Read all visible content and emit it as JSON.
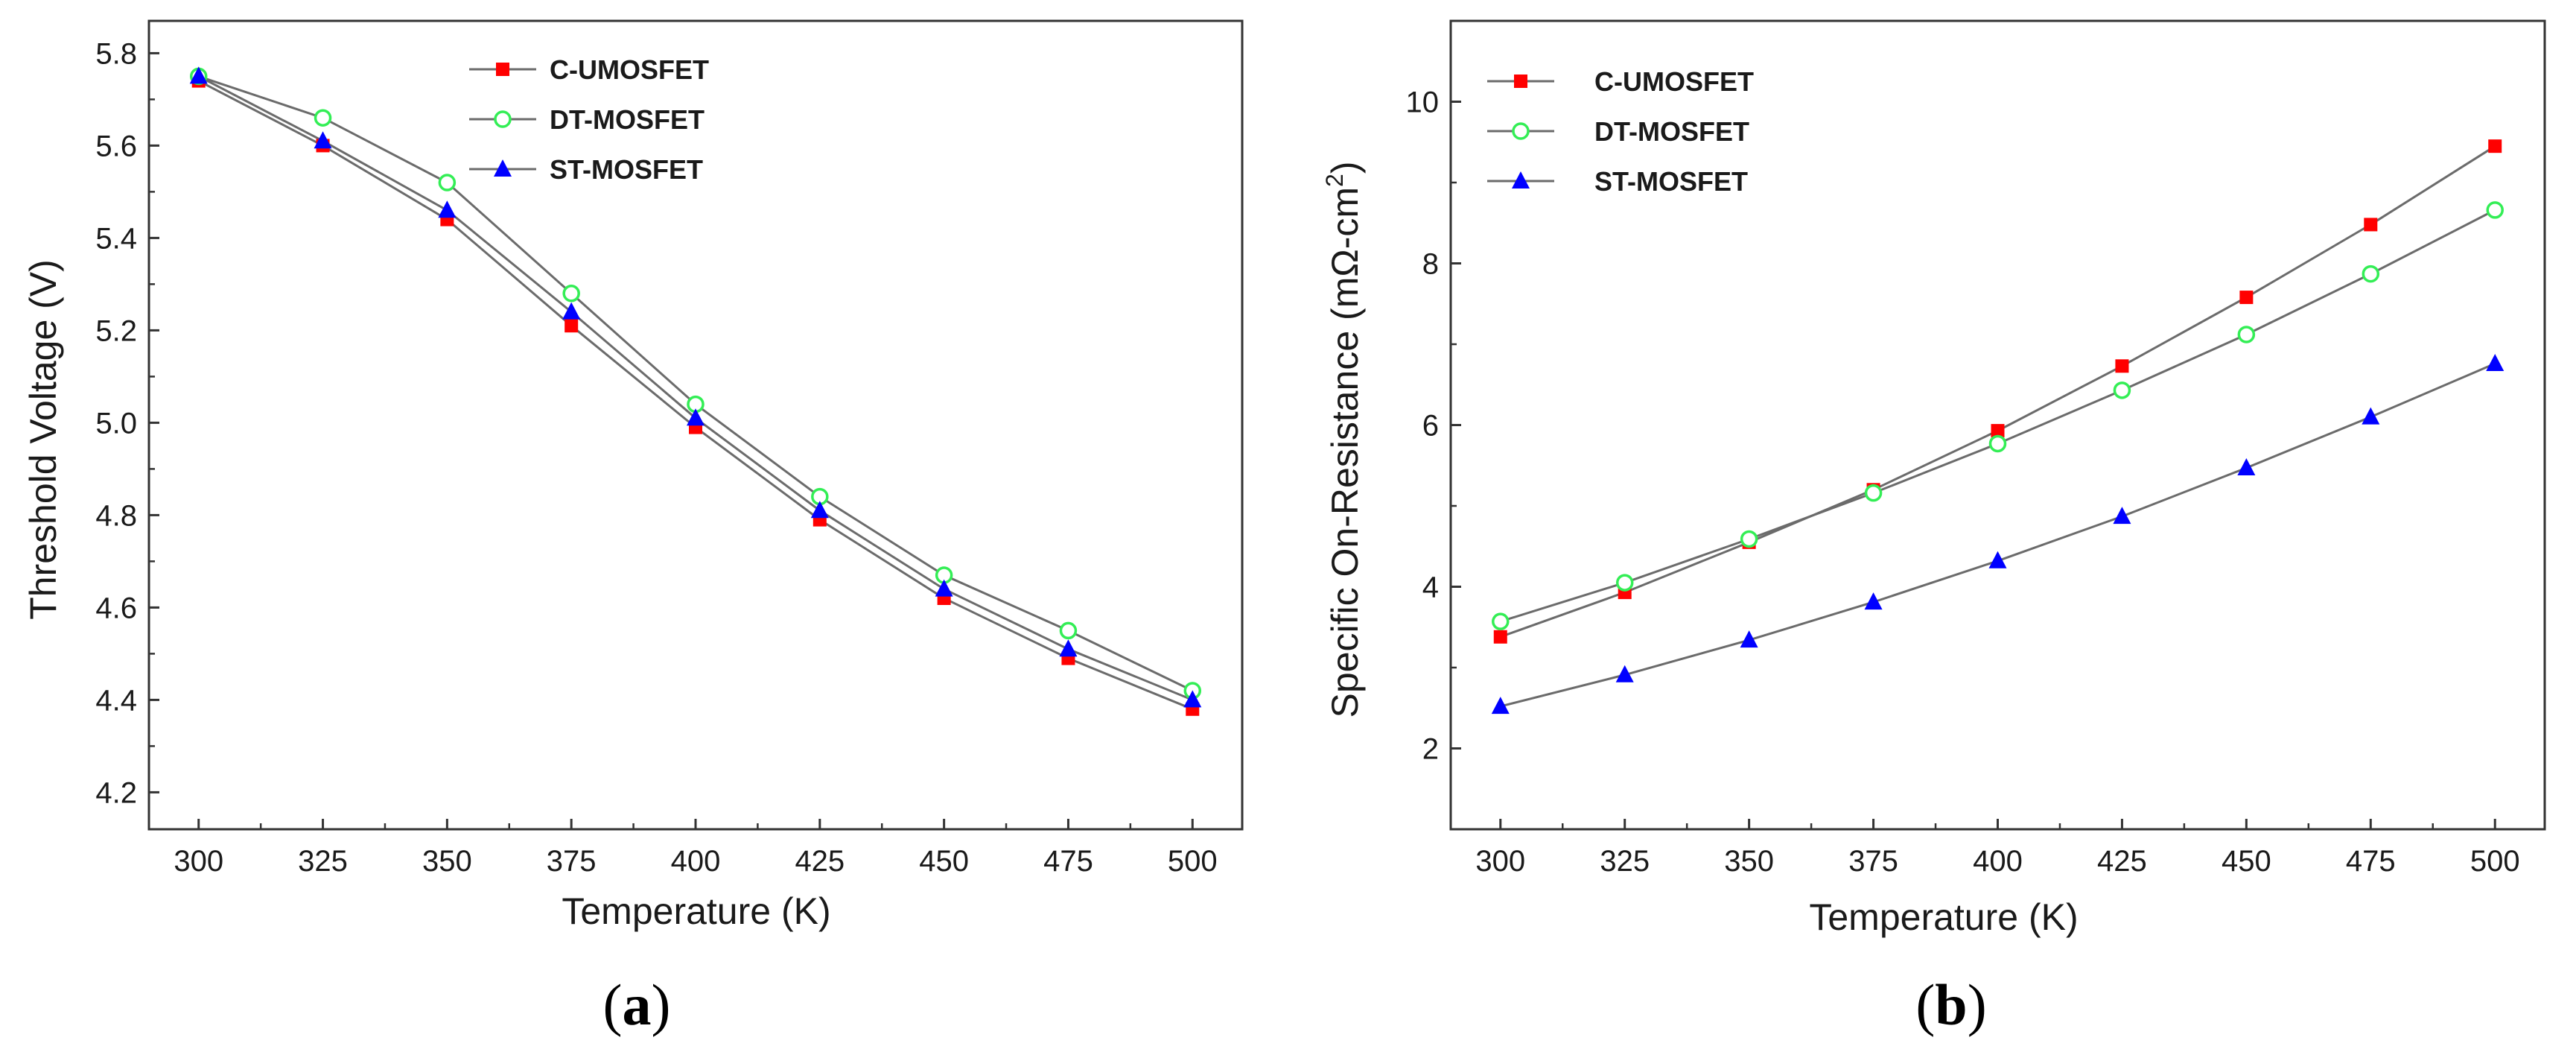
{
  "colors": {
    "line": "#6b6b6b",
    "axis": "#333333",
    "c_umosfet": "#ff0000",
    "dt_mosfet": "#33ee55",
    "st_mosfet": "#0000ff"
  },
  "chart_data": [
    {
      "panel_label": "(a)",
      "panel_letter": "a",
      "type": "line",
      "xlabel": "Temperature (K)",
      "ylabel": "Threshold Voltage (V)",
      "xlim": [
        290,
        510
      ],
      "ylim": [
        4.12,
        5.87
      ],
      "x_ticks": [
        300,
        325,
        350,
        375,
        400,
        425,
        450,
        475,
        500
      ],
      "y_ticks": [
        4.2,
        4.4,
        4.6,
        4.8,
        5.0,
        5.2,
        5.4,
        5.6,
        5.8
      ],
      "y_tick_labels": [
        "4.2",
        "4.4",
        "4.6",
        "4.8",
        "5.0",
        "5.2",
        "5.4",
        "5.6",
        "5.8"
      ],
      "legend_position": "top-center",
      "x": [
        300,
        325,
        350,
        375,
        400,
        425,
        450,
        475,
        500
      ],
      "series": [
        {
          "name": "C-UMOSFET",
          "marker": "square",
          "color": "#ff0000",
          "values": [
            5.74,
            5.6,
            5.44,
            5.21,
            4.99,
            4.79,
            4.62,
            4.49,
            4.38
          ]
        },
        {
          "name": "DT-MOSFET",
          "marker": "circle",
          "color": "#33ee55",
          "values": [
            5.75,
            5.66,
            5.52,
            5.28,
            5.04,
            4.84,
            4.67,
            4.55,
            4.42
          ]
        },
        {
          "name": "ST-MOSFET",
          "marker": "triangle",
          "color": "#0000ff",
          "values": [
            5.75,
            5.61,
            5.46,
            5.24,
            5.01,
            4.81,
            4.64,
            4.51,
            4.4
          ]
        }
      ]
    },
    {
      "panel_label": "(b)",
      "panel_letter": "b",
      "type": "line",
      "xlabel": "Temperature (K)",
      "ylabel": "Specific On-Resistance (mΩ-cm²)",
      "ylabel_main": "Specific On-Resistance (mΩ-cm",
      "ylabel_superscript": "2",
      "ylabel_end": ")",
      "xlim": [
        290,
        510
      ],
      "ylim": [
        1.0,
        11.0
      ],
      "x_ticks": [
        300,
        325,
        350,
        375,
        400,
        425,
        450,
        475,
        500
      ],
      "y_ticks": [
        2,
        4,
        6,
        8,
        10
      ],
      "y_tick_labels": [
        "2",
        "4",
        "6",
        "8",
        "10"
      ],
      "legend_position": "top-left",
      "x": [
        300,
        325,
        350,
        375,
        400,
        425,
        450,
        475,
        500
      ],
      "series": [
        {
          "name": "C-UMOSFET",
          "marker": "square",
          "color": "#ff0000",
          "values": [
            3.38,
            3.93,
            4.55,
            5.2,
            5.93,
            6.73,
            7.58,
            8.48,
            9.45
          ]
        },
        {
          "name": "DT-MOSFET",
          "marker": "circle",
          "color": "#33ee55",
          "values": [
            3.57,
            4.05,
            4.59,
            5.16,
            5.77,
            6.43,
            7.12,
            7.87,
            8.66
          ]
        },
        {
          "name": "ST-MOSFET",
          "marker": "triangle",
          "color": "#0000ff",
          "values": [
            2.52,
            2.91,
            3.34,
            3.81,
            4.32,
            4.87,
            5.47,
            6.1,
            6.76
          ]
        }
      ]
    }
  ]
}
